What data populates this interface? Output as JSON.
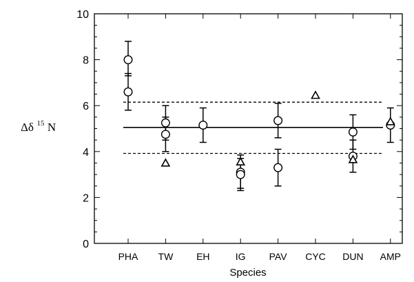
{
  "chart_data": {
    "type": "scatter",
    "xlabel": "Species",
    "ylabel": {
      "prefix": "Δδ",
      "sup": "15",
      "suffix": "N"
    },
    "ylim": [
      0,
      10
    ],
    "yticks": [
      "0",
      "2",
      "4",
      "6",
      "8",
      "10"
    ],
    "categories": [
      "PHA",
      "TW",
      "EH",
      "IG",
      "PAV",
      "CYC",
      "DUN",
      "AMP"
    ],
    "series": [
      {
        "marker": "circle",
        "points": [
          {
            "cat": "PHA",
            "y": 8.0,
            "err": [
              7.3,
              8.8
            ]
          },
          {
            "cat": "PHA",
            "y": 6.6,
            "err": [
              5.8,
              7.4
            ]
          },
          {
            "cat": "TW",
            "y": 5.25,
            "err": [
              4.5,
              6.0
            ]
          },
          {
            "cat": "TW",
            "y": 4.75,
            "err": [
              4.0,
              5.5
            ]
          },
          {
            "cat": "EH",
            "y": 5.15,
            "err": [
              4.4,
              5.9
            ]
          },
          {
            "cat": "IG",
            "y": 3.1,
            "err": [
              2.4,
              3.85
            ]
          },
          {
            "cat": "IG",
            "y": 3.0,
            "err": [
              2.3,
              3.7
            ]
          },
          {
            "cat": "PAV",
            "y": 5.35,
            "err": [
              4.6,
              6.1
            ]
          },
          {
            "cat": "PAV",
            "y": 3.3,
            "err": [
              2.5,
              4.1
            ]
          },
          {
            "cat": "DUN",
            "y": 4.85,
            "err": [
              4.1,
              5.6
            ]
          },
          {
            "cat": "DUN",
            "y": 3.8,
            "err": [
              3.1,
              4.5
            ]
          },
          {
            "cat": "AMP",
            "y": 5.15,
            "err": [
              4.4,
              5.9
            ]
          }
        ]
      },
      {
        "marker": "triangle",
        "points": [
          {
            "cat": "TW",
            "y": 3.5
          },
          {
            "cat": "IG",
            "y": 3.55
          },
          {
            "cat": "CYC",
            "y": 6.45
          },
          {
            "cat": "DUN",
            "y": 3.65
          },
          {
            "cat": "AMP",
            "y": 5.3
          }
        ]
      }
    ],
    "reference_lines": [
      {
        "y": 5.05,
        "style": "solid"
      },
      {
        "y": 6.15,
        "style": "dashed"
      },
      {
        "y": 3.92,
        "style": "dashed"
      }
    ],
    "grid": false,
    "legend": "none"
  }
}
